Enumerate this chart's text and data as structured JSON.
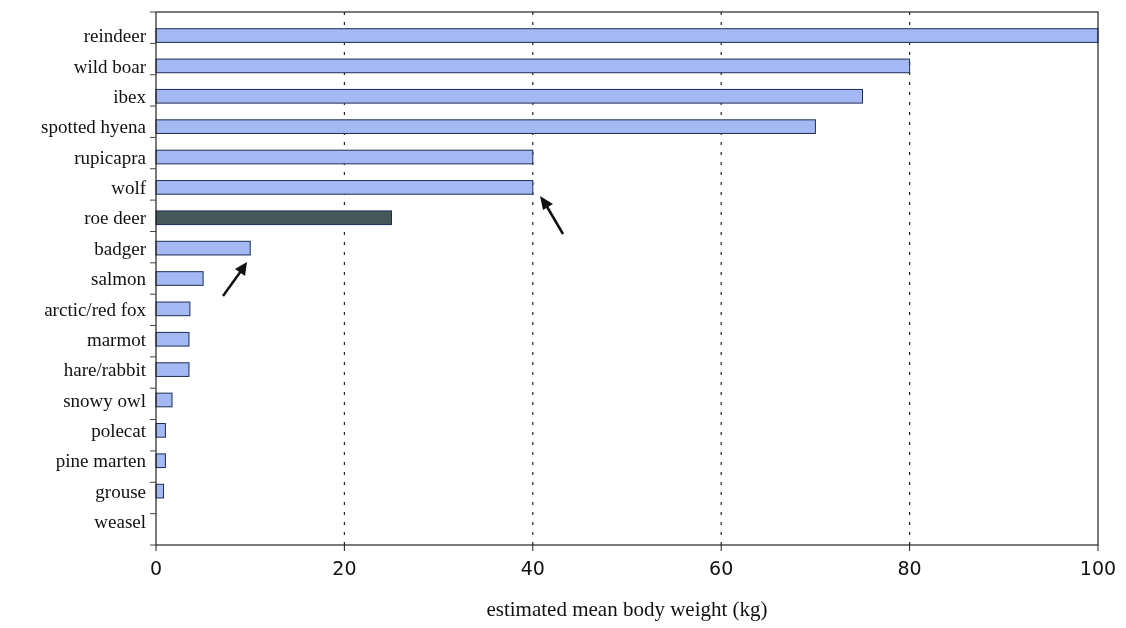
{
  "chart_data": {
    "type": "bar",
    "orientation": "horizontal",
    "xlabel": "estimated mean body weight (kg)",
    "categories": [
      "reindeer",
      "wild boar",
      "ibex",
      "spotted hyena",
      "rupicapra",
      "wolf",
      "roe deer",
      "badger",
      "salmon",
      "arctic/red fox",
      "marmot",
      "hare/rabbit",
      "snowy owl",
      "polecat",
      "pine marten",
      "grouse",
      "weasel"
    ],
    "values": [
      100,
      80,
      75,
      70,
      40,
      40,
      25,
      10,
      5,
      3.6,
      3.5,
      3.5,
      1.7,
      1,
      1,
      0.8,
      0
    ],
    "colors": [
      "#a4b8f4",
      "#a4b8f4",
      "#a4b8f4",
      "#a4b8f4",
      "#a4b8f4",
      "#a4b8f4",
      "#44585a",
      "#a4b8f4",
      "#a4b8f4",
      "#a4b8f4",
      "#a4b8f4",
      "#a4b8f4",
      "#a4b8f4",
      "#a4b8f4",
      "#a4b8f4",
      "#a4b8f4",
      "#a4b8f4"
    ],
    "xlim": [
      0,
      100
    ],
    "xticks": [
      0,
      20,
      40,
      60,
      80,
      100
    ],
    "grid": "x"
  }
}
